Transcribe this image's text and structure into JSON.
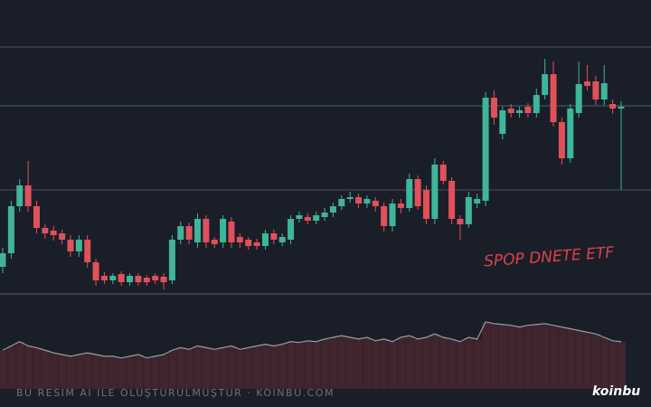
{
  "chart_data": {
    "type": "candlestick",
    "annotation": "SPOP DNETE ETF",
    "watermark": "BU RESIM AI ILE OLUŞTURULMUŞTUR · KOINBU.COM",
    "logo": "koinbu",
    "up_color": "#3fb59a",
    "down_color": "#e0515a",
    "ylim": [
      0,
      280
    ],
    "open": [
      35,
      50,
      102,
      125,
      102,
      78,
      75,
      72,
      65,
      52,
      65,
      40,
      25,
      20,
      27,
      18,
      25,
      23,
      25,
      24,
      20,
      65,
      80,
      62,
      88,
      65,
      62,
      85,
      68,
      65,
      62,
      58,
      72,
      62,
      65,
      88,
      90,
      86,
      90,
      95,
      102,
      110,
      112,
      105,
      108,
      102,
      80,
      105,
      100,
      132,
      120,
      88,
      148,
      130,
      88,
      82,
      105,
      108,
      222,
      182,
      210,
      205,
      212,
      205,
      225,
      248,
      195,
      155,
      205,
      240,
      240,
      220,
      215,
      210
    ],
    "high": [
      56,
      108,
      132,
      152,
      108,
      82,
      80,
      76,
      70,
      70,
      70,
      44,
      29,
      28,
      30,
      28,
      28,
      26,
      28,
      28,
      70,
      85,
      84,
      94,
      92,
      68,
      92,
      90,
      72,
      68,
      66,
      76,
      76,
      72,
      92,
      96,
      94,
      96,
      100,
      106,
      114,
      118,
      116,
      114,
      112,
      106,
      110,
      110,
      138,
      136,
      125,
      155,
      152,
      134,
      92,
      118,
      116,
      228,
      230,
      212,
      215,
      212,
      216,
      232,
      265,
      262,
      200,
      215,
      262,
      258,
      246,
      258,
      220,
      218
    ],
    "low": [
      28,
      44,
      96,
      96,
      72,
      66,
      64,
      60,
      46,
      46,
      34,
      14,
      16,
      16,
      14,
      14,
      14,
      14,
      16,
      10,
      16,
      60,
      60,
      56,
      56,
      56,
      56,
      56,
      56,
      54,
      54,
      54,
      60,
      58,
      60,
      84,
      82,
      82,
      86,
      90,
      98,
      106,
      100,
      100,
      96,
      74,
      74,
      94,
      96,
      98,
      82,
      82,
      126,
      82,
      65,
      78,
      100,
      102,
      192,
      176,
      200,
      200,
      200,
      200,
      220,
      190,
      148,
      150,
      200,
      230,
      214,
      214,
      204,
      120
    ],
    "close": [
      50,
      102,
      125,
      102,
      78,
      72,
      70,
      65,
      52,
      65,
      40,
      20,
      20,
      25,
      18,
      25,
      18,
      18,
      20,
      18,
      65,
      80,
      65,
      88,
      62,
      60,
      88,
      62,
      62,
      58,
      58,
      72,
      65,
      68,
      88,
      92,
      86,
      92,
      95,
      102,
      110,
      112,
      105,
      110,
      102,
      80,
      105,
      100,
      132,
      102,
      88,
      148,
      130,
      88,
      82,
      112,
      110,
      222,
      200,
      208,
      205,
      208,
      205,
      225,
      248,
      195,
      155,
      210,
      237,
      235,
      220,
      238,
      210,
      212
    ],
    "volume": {
      "ylim": [
        0,
        100
      ],
      "color": "#5a2a2e",
      "line_color": "#9a9ca4",
      "values": [
        45,
        50,
        55,
        50,
        48,
        45,
        42,
        40,
        38,
        40,
        42,
        40,
        38,
        38,
        36,
        38,
        40,
        36,
        38,
        40,
        45,
        48,
        46,
        50,
        48,
        46,
        48,
        50,
        46,
        48,
        50,
        52,
        50,
        52,
        55,
        54,
        56,
        55,
        58,
        60,
        62,
        60,
        58,
        60,
        56,
        58,
        55,
        60,
        62,
        58,
        60,
        64,
        60,
        58,
        55,
        60,
        58,
        78,
        76,
        75,
        74,
        72,
        74,
        75,
        76,
        74,
        72,
        70,
        68,
        66,
        64,
        60,
        56,
        55
      ]
    }
  }
}
